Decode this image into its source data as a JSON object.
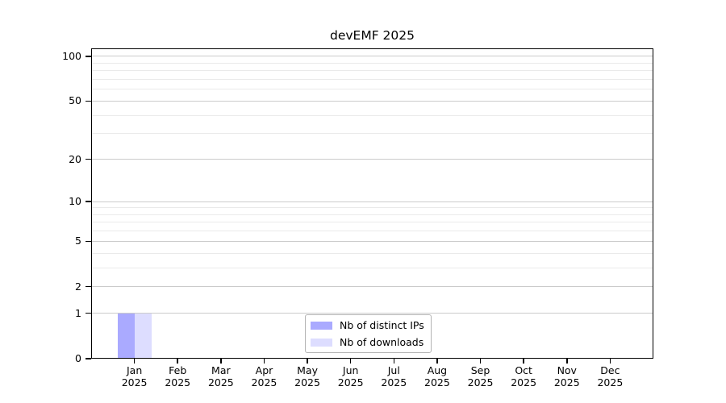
{
  "title": "devEMF 2025",
  "colors": {
    "background": "#ffffff",
    "axis": "#000000",
    "text": "#000000",
    "grid_major": "#cbcbcb",
    "grid_minor": "#eaeaea",
    "legend_border": "#b4b4b4",
    "series_distinct_ips": "#aaaaff",
    "series_downloads": "#ddddff"
  },
  "legend": {
    "items": [
      {
        "label": "Nb of distinct IPs",
        "color": "#aaaaff"
      },
      {
        "label": "Nb of downloads",
        "color": "#ddddff"
      }
    ]
  },
  "chart_data": {
    "type": "bar",
    "title": "devEMF 2025",
    "categories": [
      "Jan 2025",
      "Feb 2025",
      "Mar 2025",
      "Apr 2025",
      "May 2025",
      "Jun 2025",
      "Jul 2025",
      "Aug 2025",
      "Sep 2025",
      "Oct 2025",
      "Nov 2025",
      "Dec 2025"
    ],
    "x_tick_months": [
      "Jan",
      "Feb",
      "Mar",
      "Apr",
      "May",
      "Jun",
      "Jul",
      "Aug",
      "Sep",
      "Oct",
      "Nov",
      "Dec"
    ],
    "x_tick_year": "2025",
    "series": [
      {
        "name": "Nb of distinct IPs",
        "color": "#aaaaff",
        "values": [
          1,
          0,
          0,
          0,
          0,
          0,
          0,
          0,
          0,
          0,
          0,
          0
        ]
      },
      {
        "name": "Nb of downloads",
        "color": "#ddddff",
        "values": [
          1,
          0,
          0,
          0,
          0,
          0,
          0,
          0,
          0,
          0,
          0,
          0
        ]
      }
    ],
    "xlabel": "",
    "ylabel": "",
    "yscale": "log1p",
    "ylim": [
      0,
      113
    ],
    "y_major_ticks": [
      0,
      1,
      2,
      5,
      10,
      20,
      50,
      100
    ],
    "y_minor_gridlines": [
      3,
      4,
      6,
      7,
      8,
      9,
      30,
      40,
      60,
      70,
      80,
      90
    ],
    "grid": "horizontal",
    "legend_position": "lower center"
  }
}
